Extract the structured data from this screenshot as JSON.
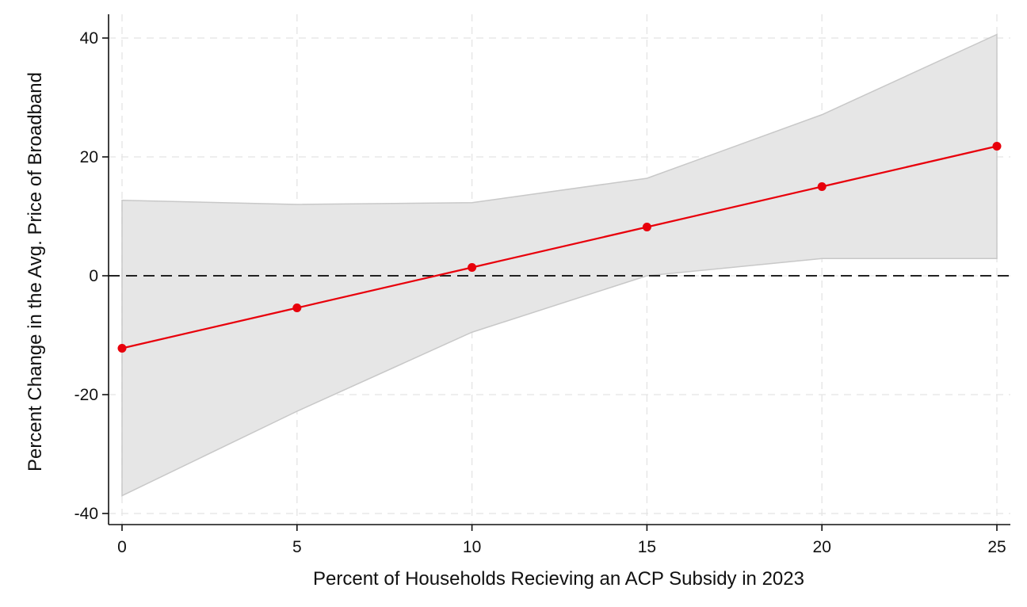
{
  "chart_data": {
    "type": "line",
    "xlabel": "Percent of Households Recieving an ACP Subsidy in 2023",
    "ylabel": "Percent Change in the Avg. Price of Broadband",
    "xlim": [
      0,
      25
    ],
    "ylim": [
      -40,
      40
    ],
    "x_ticks": [
      0,
      5,
      10,
      15,
      20,
      25
    ],
    "y_ticks": [
      -40,
      -20,
      0,
      20,
      40
    ],
    "x_tick_labels": [
      "0",
      "5",
      "10",
      "15",
      "20",
      "25"
    ],
    "y_tick_labels": [
      "-40",
      "-20",
      "0",
      "20",
      "40"
    ],
    "grid": true,
    "reference_line": {
      "y": 0,
      "style": "dashed"
    },
    "series": [
      {
        "x": [
          0,
          5,
          10,
          15,
          20,
          25
        ],
        "y": [
          -12.2,
          -5.4,
          1.4,
          8.2,
          15.0,
          21.8
        ],
        "ci_lower": [
          -37.0,
          -22.8,
          -9.5,
          0.0,
          2.9,
          2.9
        ],
        "ci_upper": [
          12.7,
          12.0,
          12.3,
          16.4,
          27.1,
          40.6
        ]
      }
    ],
    "colors": {
      "line": "#e8000b",
      "band_fill": "#e6e6e6",
      "band_edge": "#c8c8c8",
      "grid": "#e4e4e4",
      "axis": "#111111"
    }
  }
}
